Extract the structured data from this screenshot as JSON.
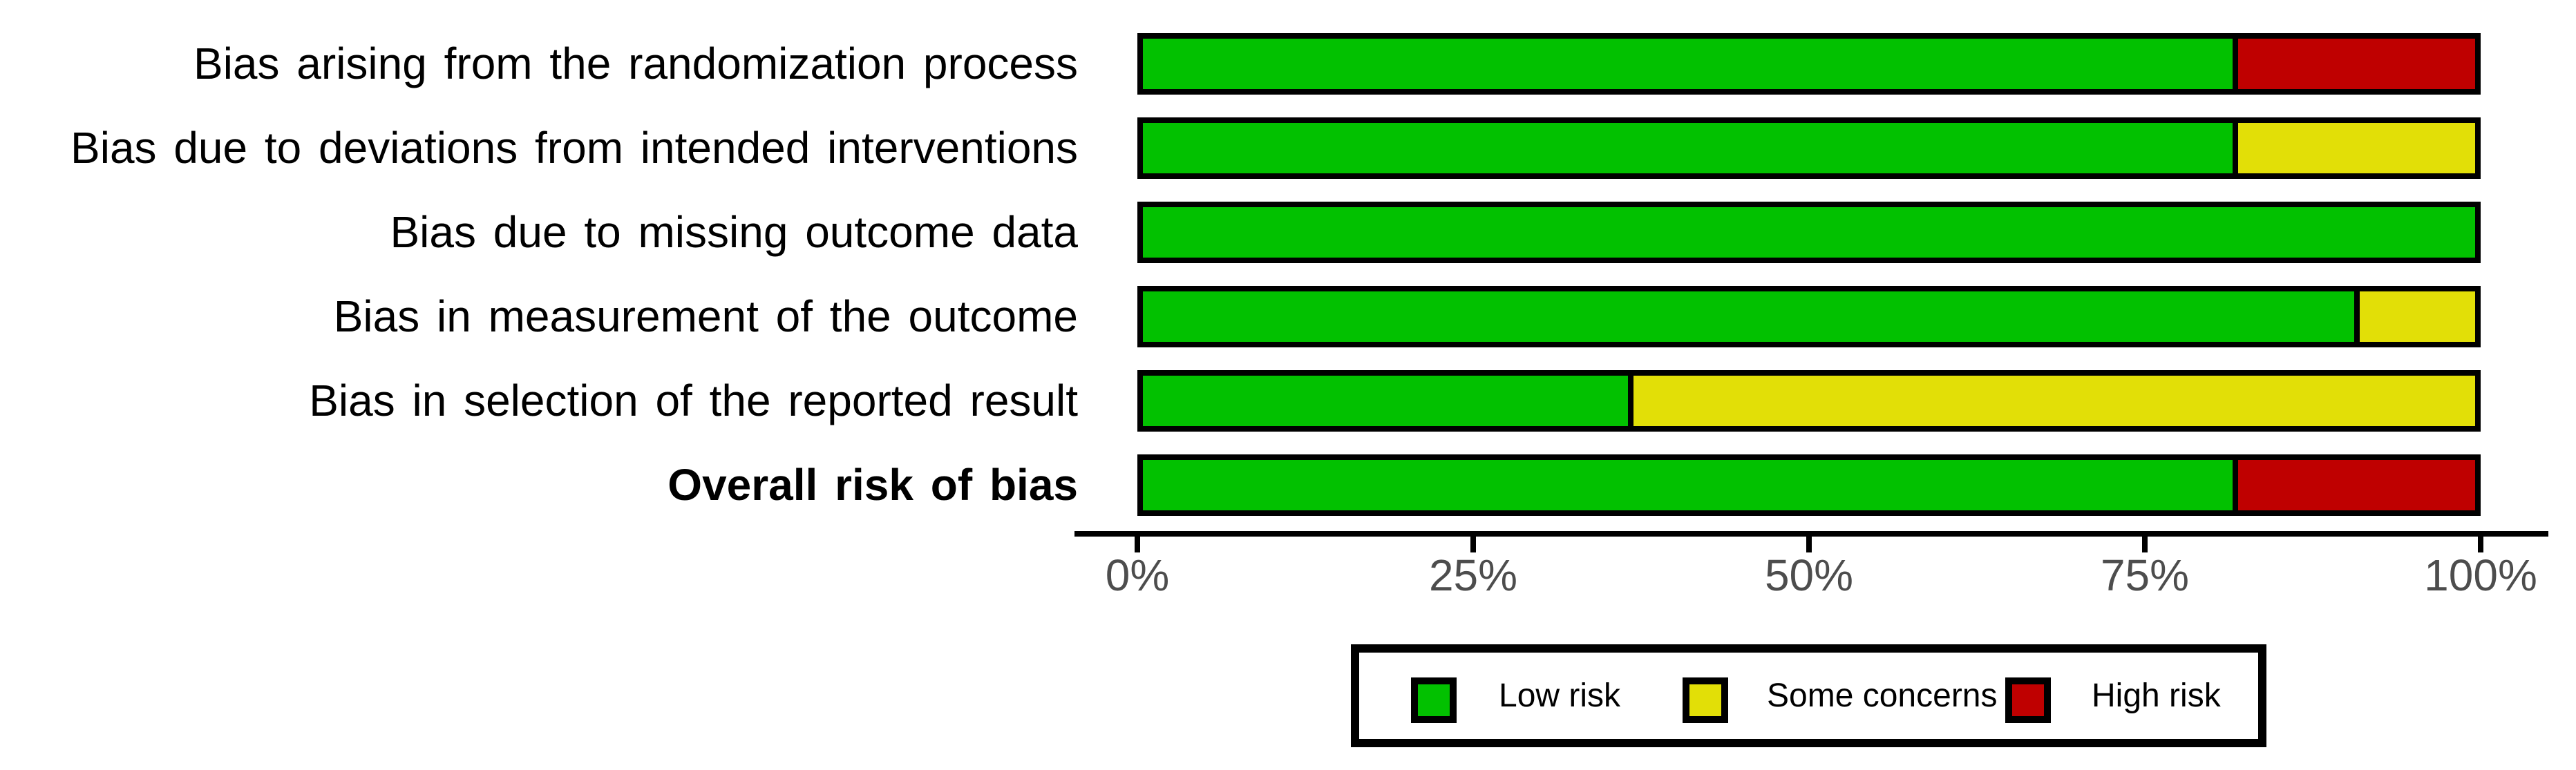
{
  "chart_data": {
    "type": "bar",
    "orientation": "horizontal",
    "stacked": true,
    "unit": "percent",
    "title": "",
    "xlabel": "",
    "ylabel": "",
    "xlim": [
      0,
      100
    ],
    "grid": false,
    "legend_position": "bottom",
    "categories": [
      {
        "label": "Bias arising from the randomization process",
        "bold": false
      },
      {
        "label": "Bias due to deviations from intended interventions",
        "bold": false
      },
      {
        "label": "Bias due to missing outcome data",
        "bold": false
      },
      {
        "label": "Bias in measurement of the outcome",
        "bold": false
      },
      {
        "label": "Bias in selection of the reported result",
        "bold": false
      },
      {
        "label": "Overall risk of bias",
        "bold": true
      }
    ],
    "series": [
      {
        "name": "Low risk",
        "color": "#02C100",
        "values": [
          81.8,
          81.8,
          100,
          90.9,
          36.4,
          81.8
        ]
      },
      {
        "name": "Some concerns",
        "color": "#E2DF07",
        "values": [
          0,
          18.2,
          0,
          9.1,
          63.6,
          0
        ]
      },
      {
        "name": "High risk",
        "color": "#BF0000",
        "values": [
          18.2,
          0,
          0,
          0,
          0,
          18.2
        ]
      }
    ],
    "x_ticks": [
      {
        "label": "0%",
        "value": 0
      },
      {
        "label": "25%",
        "value": 25
      },
      {
        "label": "50%",
        "value": 50
      },
      {
        "label": "75%",
        "value": 75
      },
      {
        "label": "100%",
        "value": 100
      }
    ]
  },
  "legend": {
    "items": [
      {
        "label": "Low risk",
        "color": "#02C100"
      },
      {
        "label": "Some concerns",
        "color": "#E2DF07"
      },
      {
        "label": "High risk",
        "color": "#BF0000"
      }
    ]
  },
  "colors": {
    "low_risk": "#02C100",
    "some_concerns": "#E2DF07",
    "high_risk": "#BF0000",
    "axis": "#000000",
    "tick_label": "#4d4d4d",
    "background": "#ffffff"
  }
}
